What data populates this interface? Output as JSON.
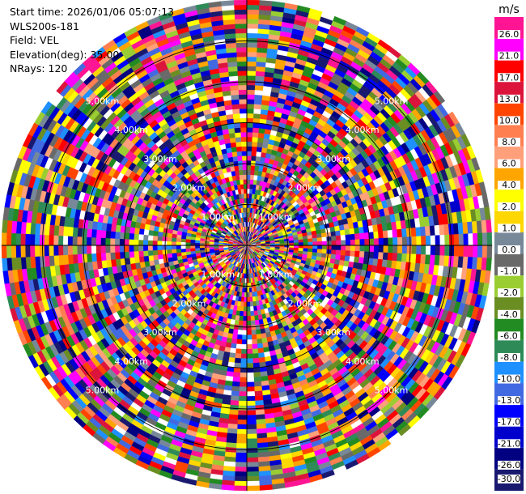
{
  "info": {
    "start_time": "Start time: 2026/01/06 05:07:13",
    "site": "WLS200s-181",
    "field": "Field: VEL",
    "elevation": "Elevation(deg): 35.00",
    "nrays": "NRays: 120"
  },
  "chart_data": {
    "type": "heatmap",
    "projection": "polar",
    "field": "VEL",
    "elevation_deg": 35.0,
    "n_rays": 120,
    "max_range_km": 6.0,
    "range_ring_labels": [
      "1.00km",
      "2.00km",
      "3.00km",
      "4.00km",
      "5.00km"
    ],
    "colorbar": {
      "unit": "m/s",
      "tick_labels": [
        "26.0",
        "21.0",
        "17.0",
        "13.0",
        "10.0",
        "8.0",
        "6.0",
        "4.0",
        "2.0",
        "1.0",
        "0.0",
        "-1.0",
        "-2.0",
        "-4.0",
        "-6.0",
        "-8.0",
        "-10.0",
        "-13.0",
        "-17.0",
        "-21.0",
        "-26.0",
        "-30.0"
      ],
      "colors": [
        "#ff1493",
        "#ff00ff",
        "#ff0000",
        "#dc143c",
        "#ff4500",
        "#ff7f50",
        "#ffa07a",
        "#ffa500",
        "#ffff00",
        "#ffd700",
        "#778899",
        "#696969",
        "#9acd32",
        "#6b8e23",
        "#228b22",
        "#2e8b57",
        "#1e90ff",
        "#4169e1",
        "#0000ff",
        "#0000cd",
        "#000080",
        "#191970"
      ]
    },
    "grid": true
  }
}
